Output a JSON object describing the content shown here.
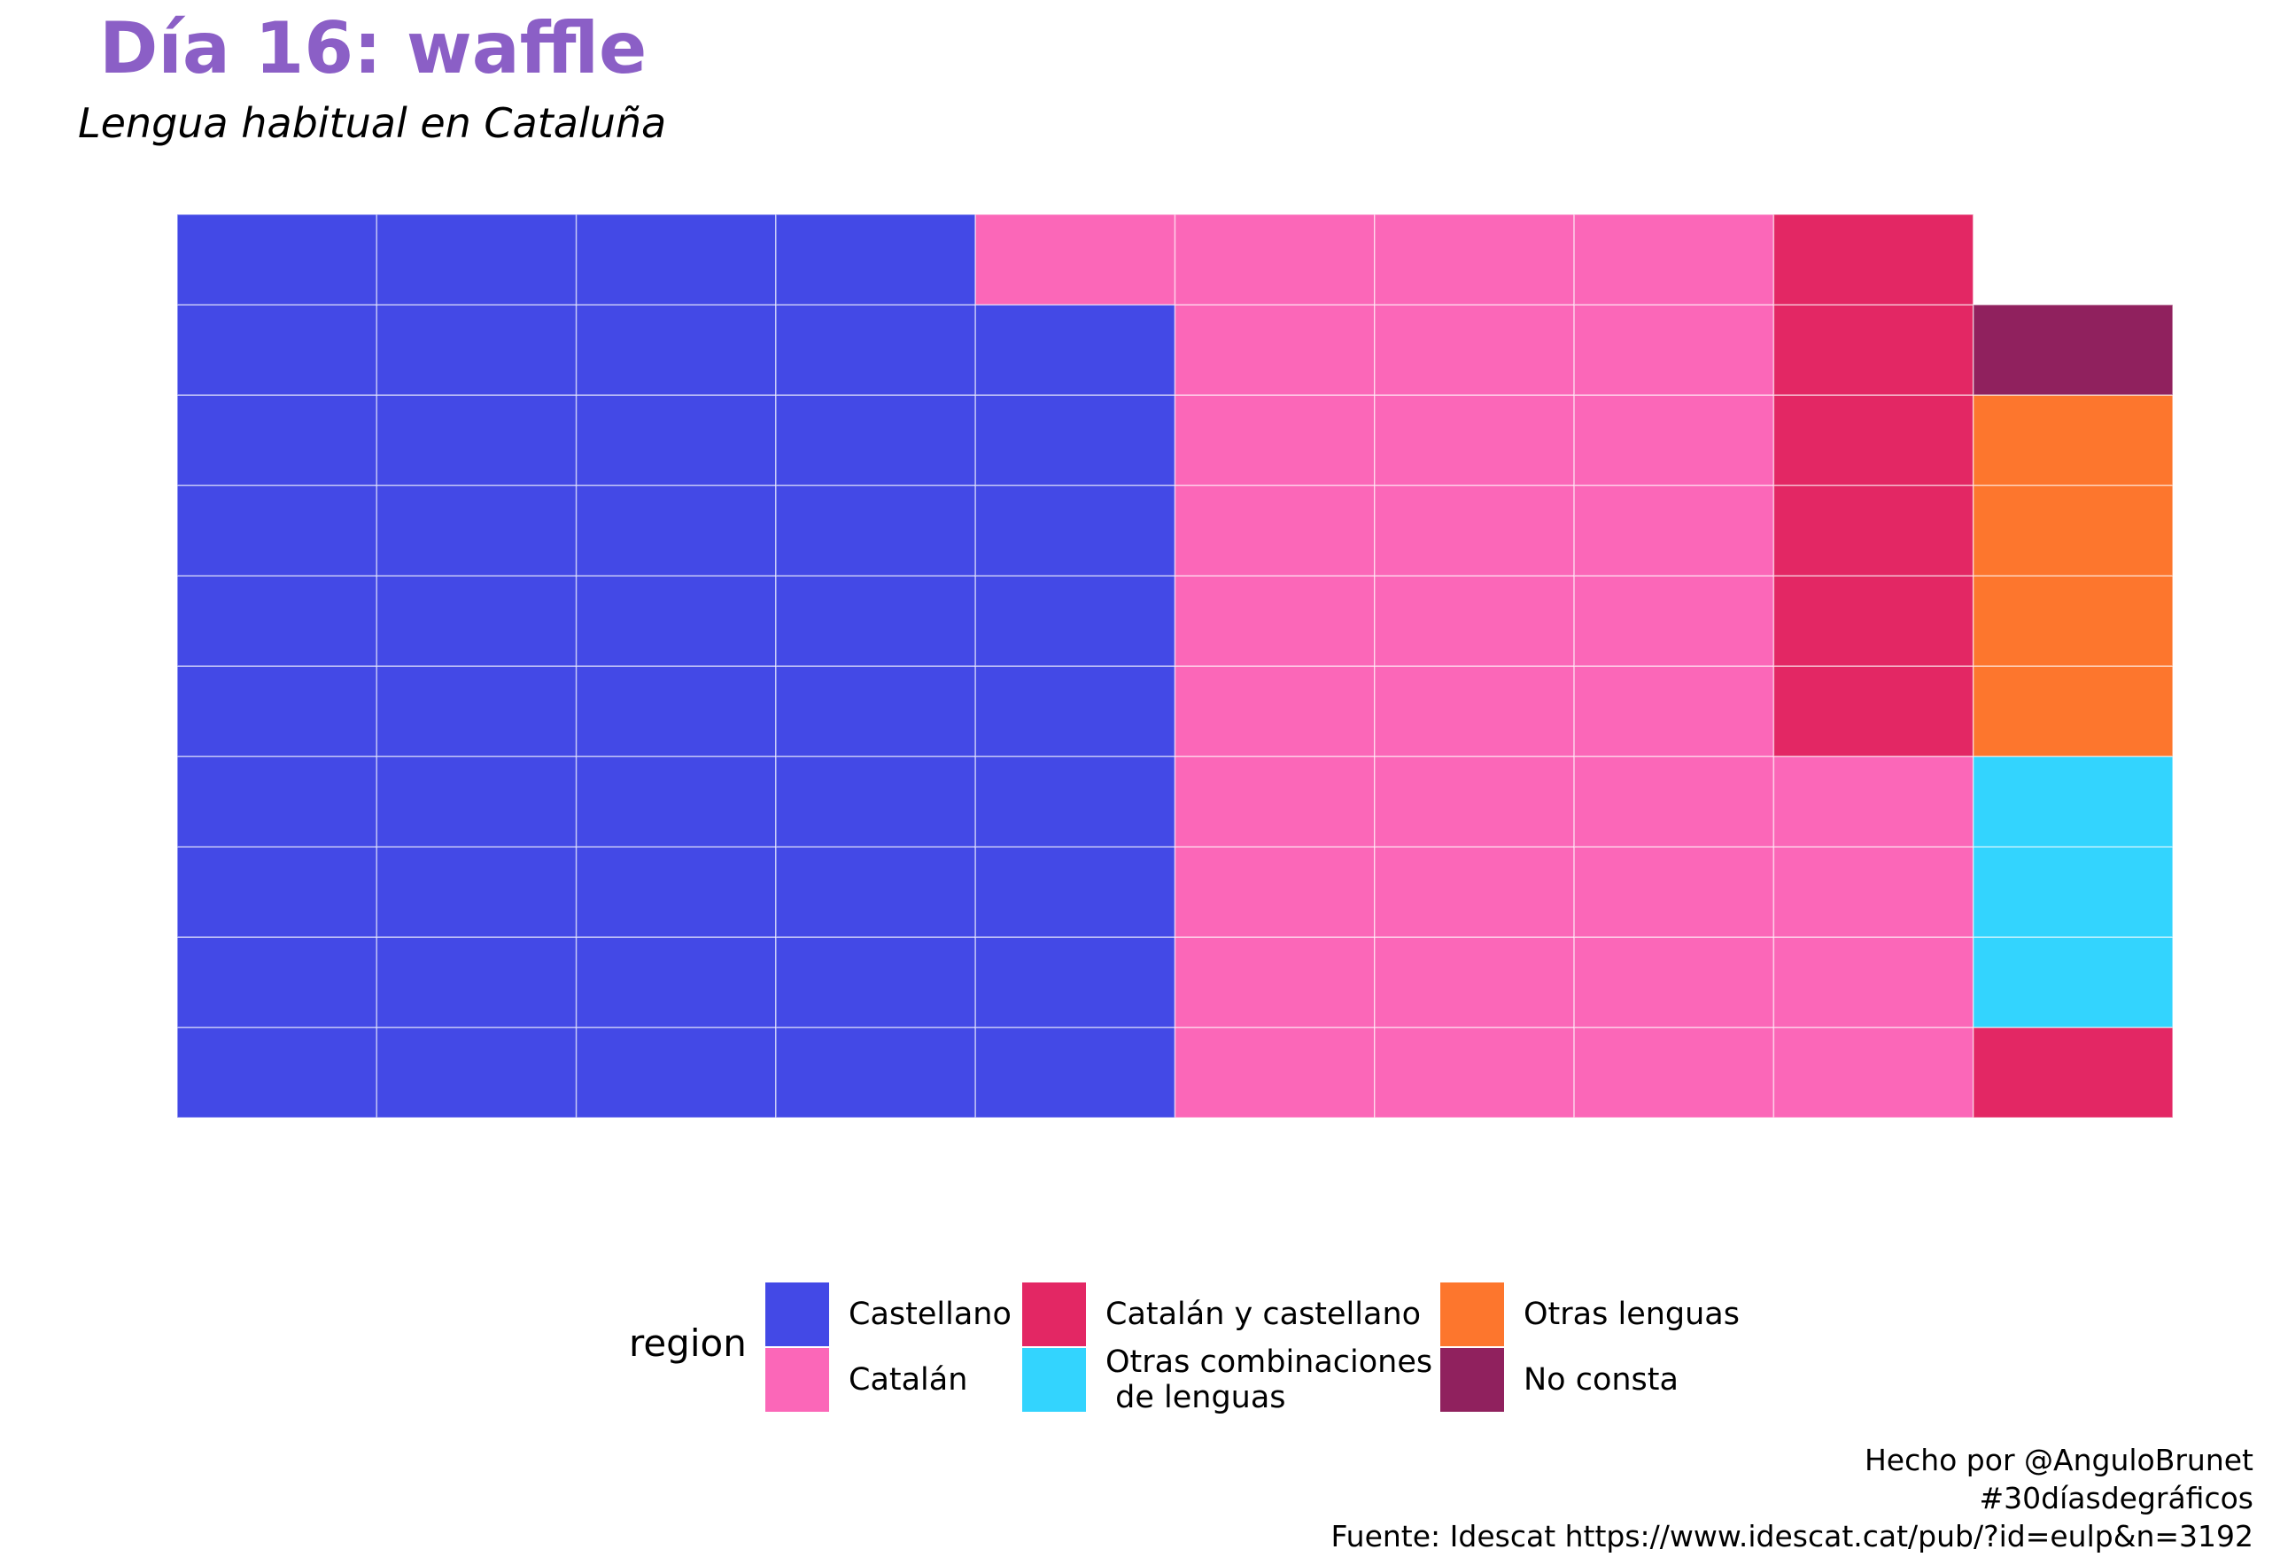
{
  "title": "Día 16: waffle",
  "subtitle": "Lengua habitual en Cataluña",
  "chart_data": {
    "type": "waffle",
    "title": "Día 16: waffle",
    "subtitle": "Lengua habitual en Cataluña",
    "grid": {
      "columns": 10,
      "rows": 10
    },
    "fill_order": "column-major, bottom-to-top, left-to-right",
    "legend_title": "region",
    "legend_position": "bottom",
    "categories": [
      "Castellano",
      "Catalán",
      "Catalán y castellano",
      "Otras combinaciones\n de lenguas",
      "Otras lenguas",
      "No consta"
    ],
    "series": [
      {
        "name": "Castellano",
        "value": 49,
        "color": "#4349e6"
      },
      {
        "name": "Catalán",
        "value": 35,
        "color": "#fb67b8"
      },
      {
        "name": "Catalán y castellano",
        "value": 7,
        "color": "#e32764"
      },
      {
        "name": "Otras combinaciones\n de lenguas",
        "value": 3,
        "color": "#33d4fe"
      },
      {
        "name": "Otras lenguas",
        "value": 4,
        "color": "#fd762d"
      },
      {
        "name": "No consta",
        "value": 1,
        "color": "#90215e"
      }
    ]
  },
  "legend": {
    "title": "region",
    "items": [
      {
        "label": "Castellano",
        "color": "#4349e6"
      },
      {
        "label": "Catalán",
        "color": "#fb67b8"
      },
      {
        "label": "Catalán y castellano",
        "color": "#e32764"
      },
      {
        "label": "Otras combinaciones\n de lenguas",
        "color": "#33d4fe"
      },
      {
        "label": "Otras lenguas",
        "color": "#fd762d"
      },
      {
        "label": "No consta",
        "color": "#90215e"
      }
    ]
  },
  "caption": {
    "line1": "Hecho por @AnguloBrunet",
    "line2": "#30díasdegráficos",
    "line3": "Fuente: Idescat https://www.idescat.cat/pub/?id=eulp&n=3192"
  }
}
